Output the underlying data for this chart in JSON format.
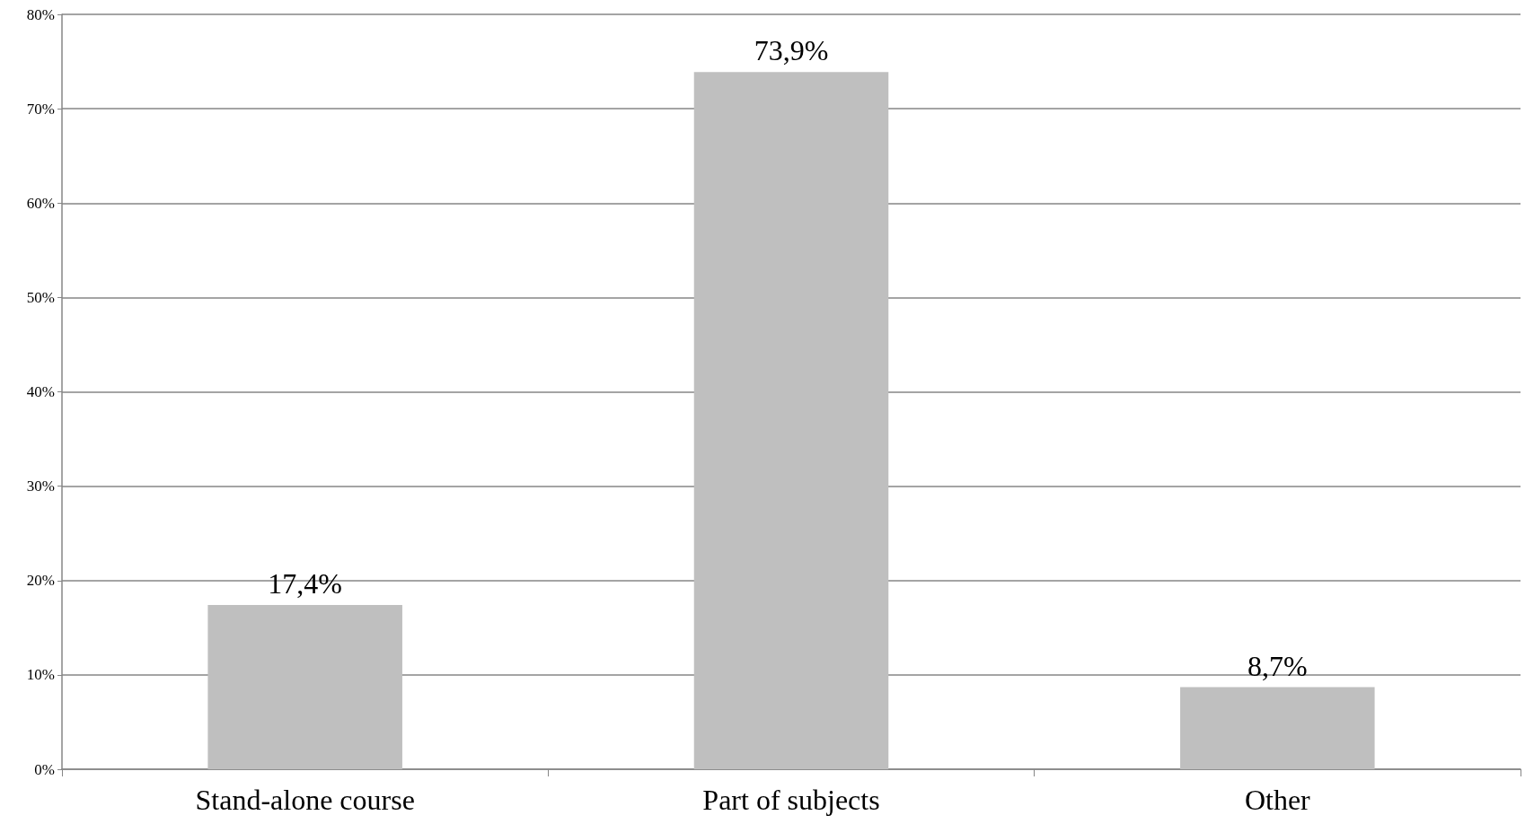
{
  "chart_data": {
    "type": "bar",
    "categories": [
      "Stand-alone course",
      "Part of subjects",
      "Other"
    ],
    "values": [
      17.4,
      73.9,
      8.7
    ],
    "color": "#bfbfbf",
    "value_labels": [
      "17,4%",
      "73,9%",
      "8,7%"
    ],
    "ylim": [
      0,
      80
    ],
    "yticks": [
      {
        "value": 0,
        "label": "0%"
      },
      {
        "value": 10,
        "label": "10%"
      },
      {
        "value": 20,
        "label": "20%"
      },
      {
        "value": 30,
        "label": "30%"
      },
      {
        "value": 40,
        "label": "40%"
      },
      {
        "value": 50,
        "label": "50%"
      },
      {
        "value": 60,
        "label": "60%"
      },
      {
        "value": 70,
        "label": "70%"
      },
      {
        "value": 80,
        "label": "80%"
      }
    ],
    "grid": "y"
  }
}
